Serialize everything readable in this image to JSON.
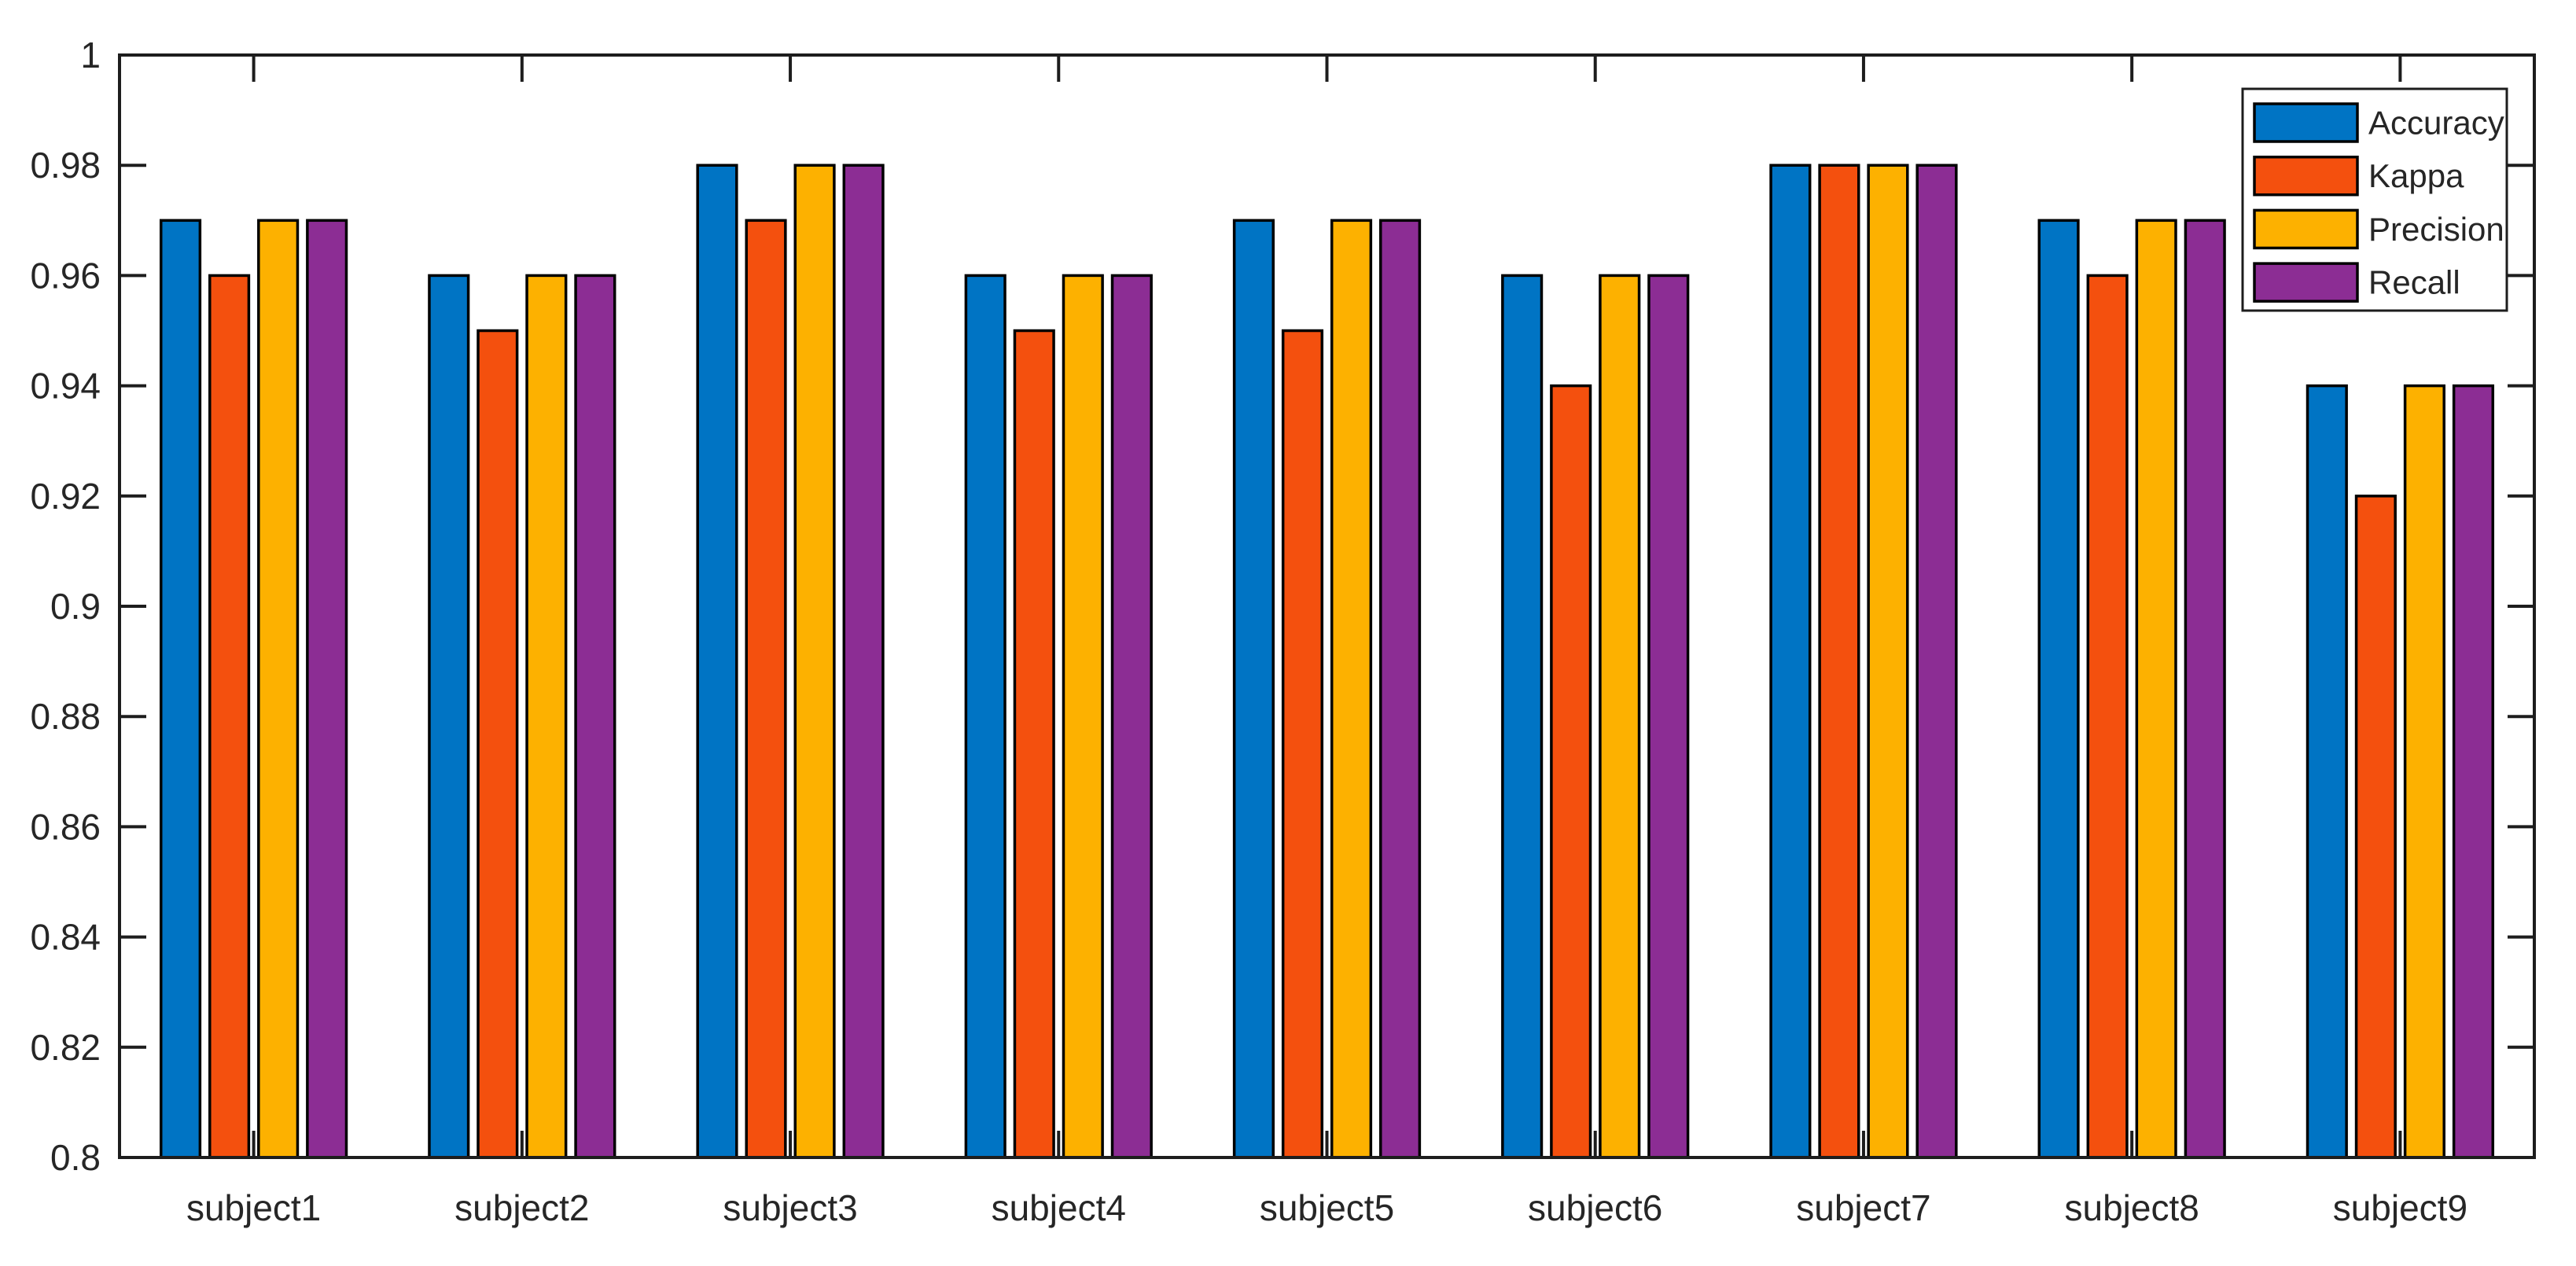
{
  "figure": {
    "background": "#ffffff"
  },
  "chart_data": {
    "type": "bar",
    "title": "",
    "xlabel": "",
    "ylabel": "",
    "grid": false,
    "legend_position": "top-right",
    "categories": [
      "subject1",
      "subject2",
      "subject3",
      "subject4",
      "subject5",
      "subject6",
      "subject7",
      "subject8",
      "subject9"
    ],
    "series": [
      {
        "name": "Accuracy",
        "color": "#0074C4",
        "values": [
          0.97,
          0.96,
          0.98,
          0.96,
          0.97,
          0.96,
          0.98,
          0.97,
          0.94
        ]
      },
      {
        "name": "Kappa",
        "color": "#F4500E",
        "values": [
          0.96,
          0.95,
          0.97,
          0.95,
          0.95,
          0.94,
          0.98,
          0.96,
          0.92
        ]
      },
      {
        "name": "Precision",
        "color": "#FDB100",
        "values": [
          0.97,
          0.96,
          0.98,
          0.96,
          0.97,
          0.96,
          0.98,
          0.97,
          0.94
        ]
      },
      {
        "name": "Recall",
        "color": "#8C2D94",
        "values": [
          0.97,
          0.96,
          0.98,
          0.96,
          0.97,
          0.96,
          0.98,
          0.97,
          0.94
        ]
      }
    ],
    "ylim": [
      0.8,
      1.0
    ],
    "yticks": [
      0.8,
      0.82,
      0.84,
      0.86,
      0.88,
      0.9,
      0.92,
      0.94,
      0.96,
      0.98,
      1
    ],
    "axis_color": "#1d1d1d",
    "text_color": "#262626",
    "bar_edge_color": "#000000",
    "legend_background": "#ffffff",
    "legend_border_color": "#1d1d1d"
  }
}
